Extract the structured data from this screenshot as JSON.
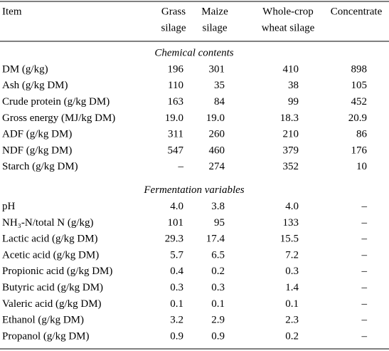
{
  "table": {
    "header": [
      [
        "Item"
      ],
      [
        "Grass",
        "silage"
      ],
      [
        "Maize",
        "silage"
      ],
      [
        "Whole-crop",
        "wheat silage"
      ],
      [
        "Concentrate"
      ]
    ],
    "sections": [
      {
        "title": "Chemical contents",
        "rows": [
          [
            "DM (g/kg)",
            "196",
            "301",
            "410",
            "898"
          ],
          [
            "Ash (g/kg DM)",
            "110",
            "35",
            "38",
            "105"
          ],
          [
            "Crude protein (g/kg DM)",
            "163",
            "84",
            "99",
            "452"
          ],
          [
            "Gross energy (MJ/kg DM)",
            "19.0",
            "19.0",
            "18.3",
            "20.9"
          ],
          [
            "ADF (g/kg DM)",
            "311",
            "260",
            "210",
            "86"
          ],
          [
            "NDF (g/kg DM)",
            "547",
            "460",
            "379",
            "176"
          ],
          [
            "Starch (g/kg DM)",
            "–",
            "274",
            "352",
            "10"
          ]
        ]
      },
      {
        "title": "Fermentation variables",
        "rows": [
          [
            "pH",
            "4.0",
            "3.8",
            "4.0",
            "–"
          ],
          [
            "NH₃-N/total N (g/kg)",
            "101",
            "95",
            "133",
            "–"
          ],
          [
            "Lactic acid (g/kg DM)",
            "29.3",
            "17.4",
            "15.5",
            "–"
          ],
          [
            "Acetic acid (g/kg DM)",
            "5.7",
            "6.5",
            "7.2",
            "–"
          ],
          [
            "Propionic acid (g/kg DM)",
            "0.4",
            "0.2",
            "0.3",
            "–"
          ],
          [
            "Butyric acid (g/kg DM)",
            "0.3",
            "0.3",
            "1.4",
            "–"
          ],
          [
            "Valeric acid (g/kg DM)",
            "0.1",
            "0.1",
            "0.1",
            "–"
          ],
          [
            "Ethanol (g/kg DM)",
            "3.2",
            "2.9",
            "2.3",
            "–"
          ],
          [
            "Propanol (g/kg DM)",
            "0.9",
            "0.9",
            "0.2",
            "–"
          ]
        ]
      }
    ]
  }
}
